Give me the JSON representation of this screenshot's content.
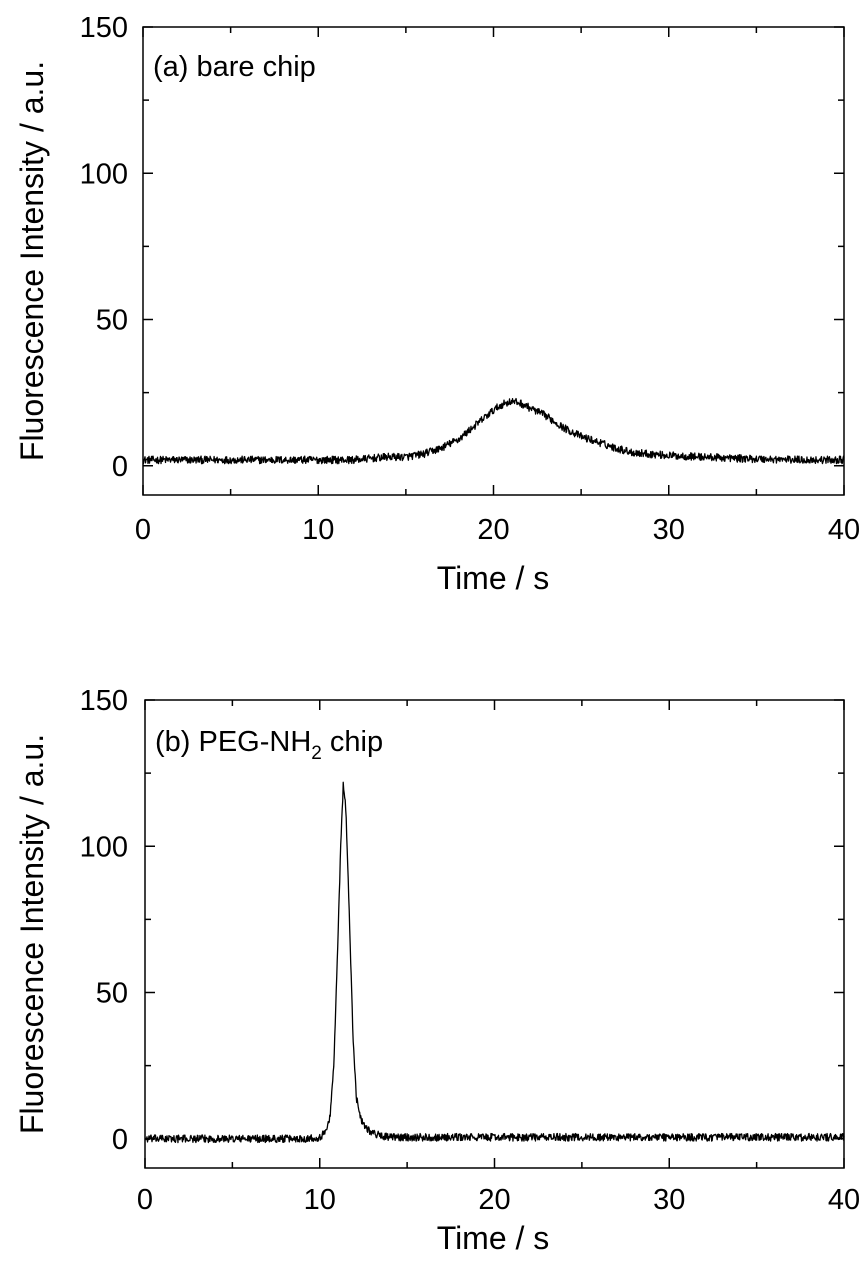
{
  "chart_data": [
    {
      "type": "line",
      "panel_label": "(a) bare chip",
      "xlabel": "Time / s",
      "ylabel": "Fluorescence Intensity / a.u.",
      "xlim": [
        0,
        40
      ],
      "ylim": [
        -10,
        150
      ],
      "xticks": [
        0,
        10,
        20,
        30,
        40
      ],
      "yticks": [
        0,
        50,
        100,
        150
      ],
      "x_minor_step": 5,
      "y_minor_step": 25,
      "grid": false,
      "series": [
        {
          "x": [
            0,
            2,
            4,
            6,
            8,
            10,
            12,
            14,
            15,
            16,
            17,
            18,
            19,
            20,
            20.5,
            21,
            21.5,
            22,
            23,
            24,
            25,
            26,
            27,
            28,
            30,
            32,
            34,
            36,
            38,
            40
          ],
          "values": [
            2,
            2,
            2,
            2,
            2,
            2,
            2,
            3,
            3,
            4,
            6,
            9,
            14,
            19,
            21,
            22,
            21.5,
            20,
            17,
            13,
            10,
            8,
            6,
            4.5,
            3.5,
            3,
            2.5,
            2.2,
            2,
            2
          ]
        }
      ]
    },
    {
      "type": "line",
      "panel_label": "(b) PEG-NH",
      "panel_label_subscript": "2",
      "panel_label_suffix": " chip",
      "xlabel": "Time / s",
      "ylabel": "Fluorescence Intensity / a.u.",
      "xlim": [
        0,
        40
      ],
      "ylim": [
        -10,
        150
      ],
      "xticks": [
        0,
        10,
        20,
        30,
        40
      ],
      "yticks": [
        0,
        50,
        100,
        150
      ],
      "x_minor_step": 5,
      "y_minor_step": 25,
      "grid": false,
      "series": [
        {
          "x": [
            0,
            2,
            4,
            6,
            8,
            9,
            10,
            10.3,
            10.6,
            10.8,
            11.0,
            11.2,
            11.35,
            11.5,
            11.7,
            11.9,
            12.1,
            12.4,
            12.8,
            13.2,
            14,
            16,
            20,
            25,
            30,
            35,
            40
          ],
          "values": [
            0,
            0,
            0,
            0,
            0,
            0,
            0.5,
            2,
            8,
            25,
            60,
            100,
            122,
            112,
            75,
            35,
            14,
            6,
            3,
            1.5,
            0.5,
            0.5,
            0.5,
            0.5,
            0.5,
            0.5,
            0.5
          ]
        }
      ]
    }
  ]
}
